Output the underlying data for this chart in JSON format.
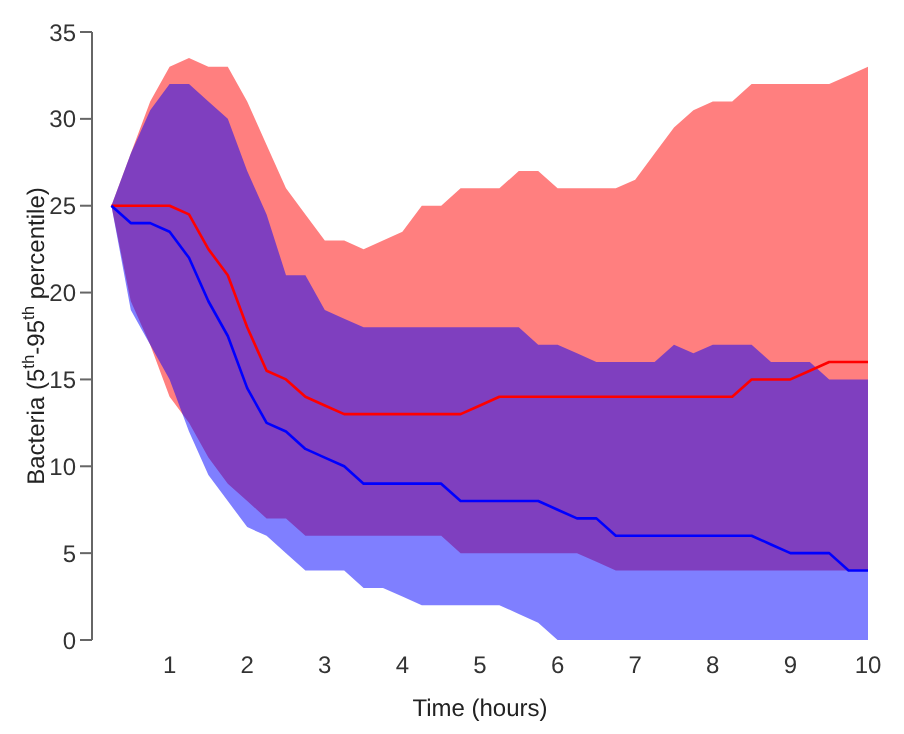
{
  "chart_data": {
    "type": "line",
    "xlabel": "Time (hours)",
    "ylabel": "Bacteria (5$^{th}$-95$^{th}$ percentile)",
    "xlim": [
      0,
      10
    ],
    "xticks": [
      1,
      2,
      3,
      4,
      5,
      6,
      7,
      8,
      9,
      10
    ],
    "ylim": [
      0,
      35
    ],
    "yticks": [
      0,
      5,
      10,
      15,
      20,
      25,
      30,
      35
    ],
    "grid": false,
    "marker": "none",
    "line_style": "solid",
    "series": [
      {
        "color": "#ff0000",
        "x": [
          0.25,
          0.5,
          0.75,
          1,
          1.25,
          1.5,
          1.75,
          2,
          2.25,
          2.5,
          2.75,
          3,
          3.25,
          3.5,
          3.75,
          4,
          4.25,
          4.5,
          4.75,
          5,
          5.25,
          5.5,
          5.75,
          6,
          6.25,
          6.5,
          6.75,
          7,
          7.25,
          7.5,
          7.75,
          8,
          8.25,
          8.5,
          8.75,
          9,
          9.25,
          9.5,
          9.75,
          10
        ],
        "values": [
          25,
          25,
          25,
          25,
          24.5,
          22.5,
          21,
          18,
          15.5,
          15,
          14,
          13.5,
          13,
          13,
          13,
          13,
          13,
          13,
          13,
          13.5,
          14,
          14,
          14,
          14,
          14,
          14,
          14,
          14,
          14,
          14,
          14,
          14,
          14,
          15,
          15,
          15,
          15.5,
          16,
          16,
          16
        ],
        "lower": [
          25,
          19.5,
          17,
          14,
          12.5,
          10.5,
          9,
          8,
          7,
          7,
          6,
          6,
          6,
          6,
          6,
          6,
          6,
          6,
          5,
          5,
          5,
          5,
          5,
          5,
          5,
          4.5,
          4,
          4,
          4,
          4,
          4,
          4,
          4,
          4,
          4,
          4,
          4,
          4,
          4,
          4
        ],
        "upper": [
          25,
          28,
          31,
          33,
          33.5,
          33,
          33,
          31,
          28.5,
          26,
          24.5,
          23,
          23,
          22.5,
          23,
          23.5,
          25,
          25,
          26,
          26,
          26,
          27,
          27,
          26,
          26,
          26,
          26,
          26.5,
          28,
          29.5,
          30.5,
          31,
          31,
          32,
          32,
          32,
          32,
          32,
          32.5,
          33
        ]
      },
      {
        "color": "#0000ff",
        "x": [
          0.25,
          0.5,
          0.75,
          1,
          1.25,
          1.5,
          1.75,
          2,
          2.25,
          2.5,
          2.75,
          3,
          3.25,
          3.5,
          3.75,
          4,
          4.25,
          4.5,
          4.75,
          5,
          5.25,
          5.5,
          5.75,
          6,
          6.25,
          6.5,
          6.75,
          7,
          7.25,
          7.5,
          7.75,
          8,
          8.25,
          8.5,
          8.75,
          9,
          9.25,
          9.5,
          9.75,
          10
        ],
        "values": [
          25,
          24,
          24,
          23.5,
          22,
          19.5,
          17.5,
          14.5,
          12.5,
          12,
          11,
          10.5,
          10,
          9,
          9,
          9,
          9,
          9,
          8,
          8,
          8,
          8,
          8,
          7.5,
          7,
          7,
          6,
          6,
          6,
          6,
          6,
          6,
          6,
          6,
          5.5,
          5,
          5,
          5,
          4,
          4
        ],
        "lower": [
          25,
          19,
          17,
          15,
          12,
          9.5,
          8,
          6.5,
          6,
          5,
          4,
          4,
          4,
          3,
          3,
          2.5,
          2,
          2,
          2,
          2,
          2,
          1.5,
          1,
          0,
          0,
          0,
          0,
          0,
          0,
          0,
          0,
          0,
          0,
          0,
          0,
          0,
          0,
          0,
          0,
          0
        ],
        "upper": [
          25,
          28,
          30.5,
          32,
          32,
          31,
          30,
          27,
          24.5,
          21,
          21,
          19,
          18.5,
          18,
          18,
          18,
          18,
          18,
          18,
          18,
          18,
          18,
          17,
          17,
          16.5,
          16,
          16,
          16,
          16,
          17,
          16.5,
          17,
          17,
          17,
          16,
          16,
          16,
          15,
          15,
          15
        ]
      }
    ]
  }
}
